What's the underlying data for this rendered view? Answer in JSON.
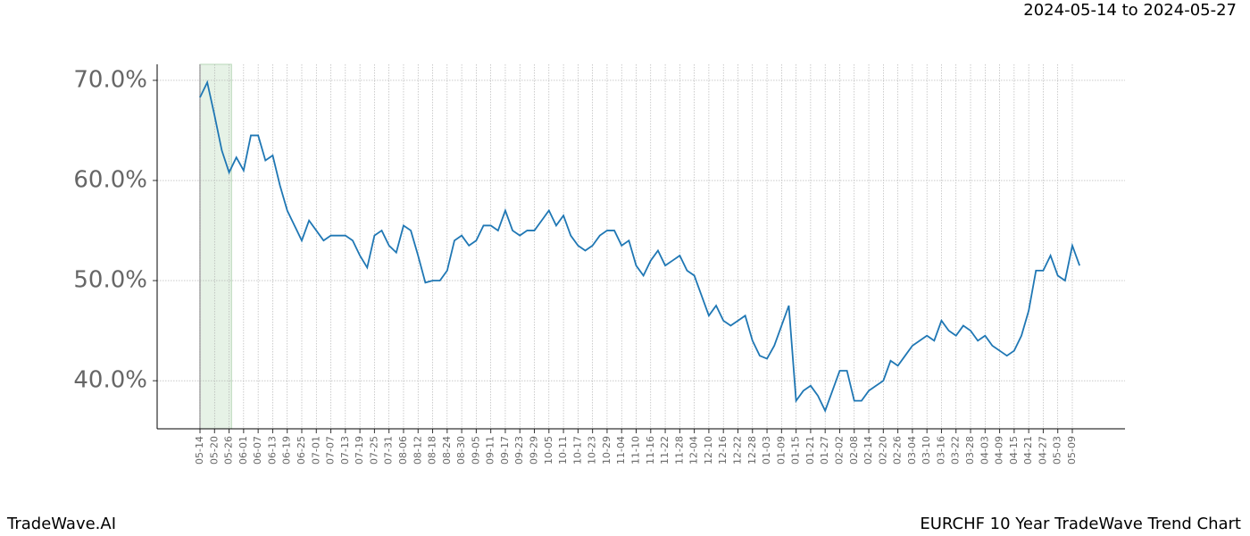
{
  "header": {
    "range": "2024-05-14 to 2024-05-27"
  },
  "footer": {
    "brand": "TradeWave.AI",
    "caption": "EURCHF 10 Year TradeWave Trend Chart"
  },
  "chart_data": {
    "type": "line",
    "color": "#1f77b4",
    "grid": true,
    "highlight": [
      "05-14",
      "05-27"
    ],
    "highlight_color": "#e6f2e6",
    "x": [
      "05-14",
      "05-17",
      "05-20",
      "05-23",
      "05-26",
      "05-29",
      "06-01",
      "06-04",
      "06-07",
      "06-10",
      "06-13",
      "06-16",
      "06-19",
      "06-22",
      "06-25",
      "06-28",
      "07-01",
      "07-04",
      "07-07",
      "07-10",
      "07-13",
      "07-16",
      "07-19",
      "07-22",
      "07-25",
      "07-28",
      "07-31",
      "08-03",
      "08-06",
      "08-09",
      "08-12",
      "08-15",
      "08-18",
      "08-21",
      "08-24",
      "08-27",
      "08-30",
      "09-02",
      "09-05",
      "09-08",
      "09-11",
      "09-14",
      "09-17",
      "09-20",
      "09-23",
      "09-26",
      "09-29",
      "10-02",
      "10-05",
      "10-08",
      "10-11",
      "10-14",
      "10-17",
      "10-20",
      "10-23",
      "10-26",
      "10-29",
      "11-01",
      "11-04",
      "11-07",
      "11-10",
      "11-13",
      "11-16",
      "11-19",
      "11-22",
      "11-25",
      "11-28",
      "12-01",
      "12-04",
      "12-07",
      "12-10",
      "12-13",
      "12-16",
      "12-19",
      "12-22",
      "12-25",
      "12-28",
      "12-31",
      "01-03",
      "01-06",
      "01-09",
      "01-12",
      "01-15",
      "01-18",
      "01-21",
      "01-24",
      "01-27",
      "01-30",
      "02-02",
      "02-05",
      "02-08",
      "02-11",
      "02-14",
      "02-17",
      "02-20",
      "02-23",
      "02-26",
      "03-01",
      "03-04",
      "03-07",
      "03-10",
      "03-13",
      "03-16",
      "03-19",
      "03-22",
      "03-25",
      "03-28",
      "03-31",
      "04-03",
      "04-06",
      "04-09",
      "04-12",
      "04-15",
      "04-18",
      "04-21",
      "04-24",
      "04-27",
      "04-30",
      "05-03",
      "05-06",
      "05-09",
      "05-12"
    ],
    "values": [
      68.3,
      69.8,
      66.5,
      63,
      60.8,
      62.3,
      61,
      64.5,
      64.5,
      62,
      62.5,
      59.5,
      57,
      55.5,
      54,
      56,
      55,
      54,
      54.5,
      54.5,
      54.5,
      54,
      52.5,
      51.3,
      54.5,
      55,
      53.5,
      52.8,
      55.5,
      55,
      52.5,
      49.8,
      50,
      50,
      51,
      54,
      54.5,
      53.5,
      54,
      55.5,
      55.5,
      55,
      57,
      55,
      54.5,
      55,
      55,
      56,
      57,
      55.5,
      56.5,
      54.5,
      53.5,
      53,
      53.5,
      54.5,
      55,
      55,
      53.5,
      54,
      51.5,
      50.5,
      52,
      53,
      51.5,
      52,
      52.5,
      51,
      50.5,
      48.5,
      46.5,
      47.5,
      46,
      45.5,
      46,
      46.5,
      44,
      42.5,
      42.2,
      43.5,
      45.5,
      47.5,
      38,
      39,
      39.5,
      38.5,
      37,
      39,
      41,
      41,
      38,
      38,
      39,
      39.5,
      40,
      42,
      41.5,
      42.5,
      43.5,
      44,
      44.5,
      44,
      46,
      45,
      44.5,
      45.5,
      45,
      44,
      44.5,
      43.5,
      43,
      42.5,
      43,
      44.5,
      47,
      51,
      51,
      52.5,
      50.5,
      50,
      53.5,
      51.5
    ],
    "xticks": [
      "05-14",
      "05-20",
      "05-26",
      "06-01",
      "06-07",
      "06-13",
      "06-19",
      "06-25",
      "07-01",
      "07-07",
      "07-13",
      "07-19",
      "07-25",
      "07-31",
      "08-06",
      "08-12",
      "08-18",
      "08-24",
      "08-30",
      "09-05",
      "09-11",
      "09-17",
      "09-23",
      "09-29",
      "10-05",
      "10-11",
      "10-17",
      "10-23",
      "10-29",
      "11-04",
      "11-10",
      "11-16",
      "11-22",
      "11-28",
      "12-04",
      "12-10",
      "12-16",
      "12-22",
      "12-28",
      "01-03",
      "01-09",
      "01-15",
      "01-21",
      "01-27",
      "02-02",
      "02-08",
      "02-14",
      "02-20",
      "02-26",
      "03-04",
      "03-10",
      "03-16",
      "03-22",
      "03-28",
      "04-03",
      "04-09",
      "04-15",
      "04-21",
      "04-27",
      "05-03",
      "05-09"
    ],
    "ylim": [
      35.2,
      71.6
    ],
    "yticks": [
      {
        "value": 40,
        "label": "40.0%"
      },
      {
        "value": 50,
        "label": "50.0%"
      },
      {
        "value": 60,
        "label": "60.0%"
      },
      {
        "value": 70,
        "label": "70.0%"
      }
    ]
  }
}
